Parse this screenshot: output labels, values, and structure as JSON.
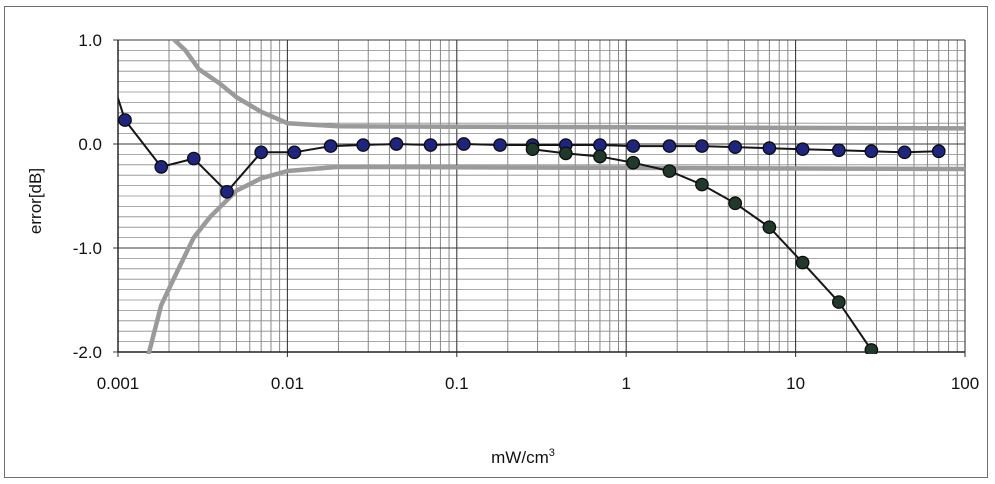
{
  "chart_data": {
    "type": "line",
    "title": "",
    "xlabel": "mW/cm",
    "xlabel_superscript": "3",
    "ylabel": "error[dB]",
    "x_scale": "log",
    "xlim": [
      0.001,
      100
    ],
    "ylim": [
      -2.0,
      1.0
    ],
    "grid": true,
    "legend": "none",
    "x_ticks": [
      {
        "value": 0.001,
        "label": "0.001"
      },
      {
        "value": 0.01,
        "label": "0.01"
      },
      {
        "value": 0.1,
        "label": "0.1"
      },
      {
        "value": 1,
        "label": "1"
      },
      {
        "value": 10,
        "label": "10"
      },
      {
        "value": 100,
        "label": "100"
      }
    ],
    "y_ticks": [
      {
        "value": 1.0,
        "label": "1.0"
      },
      {
        "value": 0.0,
        "label": "0.0"
      },
      {
        "value": -1.0,
        "label": "-1.0"
      },
      {
        "value": -2.0,
        "label": "-2.0"
      }
    ],
    "series": [
      {
        "color": "#1c2580",
        "markers": true,
        "points": [
          {
            "x": 0.0011,
            "y": 0.23
          },
          {
            "x": 0.0018,
            "y": -0.22
          },
          {
            "x": 0.0028,
            "y": -0.14
          },
          {
            "x": 0.0044,
            "y": -0.46
          },
          {
            "x": 0.007,
            "y": -0.08
          },
          {
            "x": 0.011,
            "y": -0.08
          },
          {
            "x": 0.018,
            "y": -0.02
          },
          {
            "x": 0.028,
            "y": -0.01
          },
          {
            "x": 0.044,
            "y": 0.0
          },
          {
            "x": 0.07,
            "y": -0.01
          },
          {
            "x": 0.11,
            "y": 0.0
          },
          {
            "x": 0.18,
            "y": -0.01
          },
          {
            "x": 0.28,
            "y": -0.01
          },
          {
            "x": 0.44,
            "y": -0.01
          },
          {
            "x": 0.7,
            "y": -0.01
          },
          {
            "x": 1.1,
            "y": -0.02
          },
          {
            "x": 1.8,
            "y": -0.02
          },
          {
            "x": 2.8,
            "y": -0.02
          },
          {
            "x": 4.4,
            "y": -0.03
          },
          {
            "x": 7,
            "y": -0.04
          },
          {
            "x": 11,
            "y": -0.05
          },
          {
            "x": 18,
            "y": -0.06
          },
          {
            "x": 28,
            "y": -0.07
          },
          {
            "x": 44,
            "y": -0.08
          },
          {
            "x": 70,
            "y": -0.07
          }
        ]
      },
      {
        "color": "#1f3a2a",
        "markers": true,
        "points": [
          {
            "x": 0.28,
            "y": -0.05
          },
          {
            "x": 0.44,
            "y": -0.09
          },
          {
            "x": 0.7,
            "y": -0.12
          },
          {
            "x": 1.1,
            "y": -0.18
          },
          {
            "x": 1.8,
            "y": -0.26
          },
          {
            "x": 2.8,
            "y": -0.39
          },
          {
            "x": 4.4,
            "y": -0.57
          },
          {
            "x": 7,
            "y": -0.8
          },
          {
            "x": 11,
            "y": -1.14
          },
          {
            "x": 18,
            "y": -1.52
          },
          {
            "x": 28,
            "y": -1.98
          }
        ]
      },
      {
        "color": "#9a9a9a",
        "markers": false,
        "points": [
          {
            "x": 0.002,
            "y": 1.05
          },
          {
            "x": 0.0025,
            "y": 0.9
          },
          {
            "x": 0.003,
            "y": 0.72
          },
          {
            "x": 0.004,
            "y": 0.58
          },
          {
            "x": 0.005,
            "y": 0.45
          },
          {
            "x": 0.007,
            "y": 0.31
          },
          {
            "x": 0.01,
            "y": 0.2
          },
          {
            "x": 0.02,
            "y": 0.17
          },
          {
            "x": 100,
            "y": 0.15
          }
        ]
      },
      {
        "color": "#9a9a9a",
        "markers": false,
        "points": [
          {
            "x": 0.0015,
            "y": -2.05
          },
          {
            "x": 0.0018,
            "y": -1.55
          },
          {
            "x": 0.0022,
            "y": -1.25
          },
          {
            "x": 0.0028,
            "y": -0.9
          },
          {
            "x": 0.0035,
            "y": -0.7
          },
          {
            "x": 0.005,
            "y": -0.45
          },
          {
            "x": 0.007,
            "y": -0.33
          },
          {
            "x": 0.01,
            "y": -0.26
          },
          {
            "x": 0.02,
            "y": -0.22
          },
          {
            "x": 100,
            "y": -0.24
          }
        ]
      }
    ]
  }
}
